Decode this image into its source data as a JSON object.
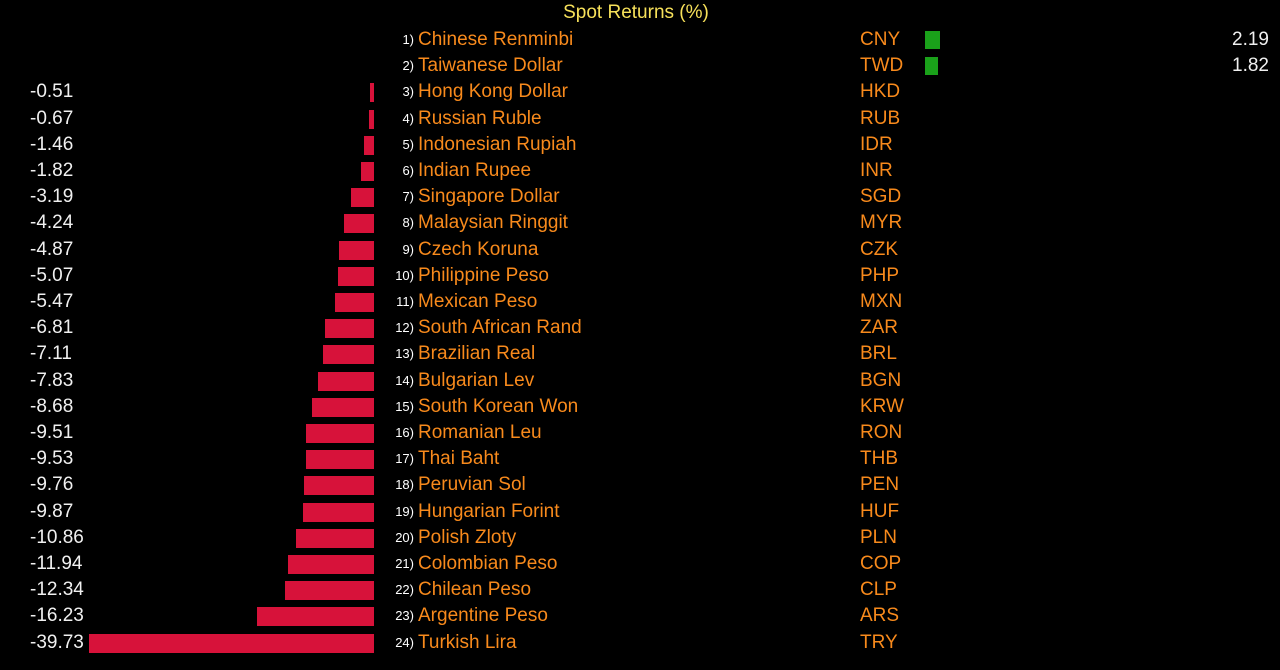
{
  "chart_data": {
    "type": "bar",
    "orientation": "horizontal",
    "title": "Spot Returns (%)",
    "legend": "none",
    "grid": false,
    "colors": {
      "negative": "#d7123a",
      "positive": "#1aa11a",
      "label": "#f88a1c",
      "title": "#f7e15a",
      "value": "#f0f0f0"
    },
    "rows": [
      {
        "rank": "1)",
        "name": "Chinese Renminbi",
        "code": "CNY",
        "value": 2.19,
        "label": "2.19"
      },
      {
        "rank": "2)",
        "name": "Taiwanese Dollar",
        "code": "TWD",
        "value": 1.82,
        "label": "1.82"
      },
      {
        "rank": "3)",
        "name": "Hong Kong Dollar",
        "code": "HKD",
        "value": -0.51,
        "label": "-0.51"
      },
      {
        "rank": "4)",
        "name": "Russian Ruble",
        "code": "RUB",
        "value": -0.67,
        "label": "-0.67"
      },
      {
        "rank": "5)",
        "name": "Indonesian Rupiah",
        "code": "IDR",
        "value": -1.46,
        "label": "-1.46"
      },
      {
        "rank": "6)",
        "name": "Indian Rupee",
        "code": "INR",
        "value": -1.82,
        "label": "-1.82"
      },
      {
        "rank": "7)",
        "name": "Singapore Dollar",
        "code": "SGD",
        "value": -3.19,
        "label": "-3.19"
      },
      {
        "rank": "8)",
        "name": "Malaysian Ringgit",
        "code": "MYR",
        "value": -4.24,
        "label": "-4.24"
      },
      {
        "rank": "9)",
        "name": "Czech Koruna",
        "code": "CZK",
        "value": -4.87,
        "label": "-4.87"
      },
      {
        "rank": "10)",
        "name": "Philippine Peso",
        "code": "PHP",
        "value": -5.07,
        "label": "-5.07"
      },
      {
        "rank": "11)",
        "name": "Mexican Peso",
        "code": "MXN",
        "value": -5.47,
        "label": "-5.47"
      },
      {
        "rank": "12)",
        "name": "South African Rand",
        "code": "ZAR",
        "value": -6.81,
        "label": "-6.81"
      },
      {
        "rank": "13)",
        "name": "Brazilian Real",
        "code": "BRL",
        "value": -7.11,
        "label": "-7.11"
      },
      {
        "rank": "14)",
        "name": "Bulgarian Lev",
        "code": "BGN",
        "value": -7.83,
        "label": "-7.83"
      },
      {
        "rank": "15)",
        "name": "South Korean Won",
        "code": "KRW",
        "value": -8.68,
        "label": "-8.68"
      },
      {
        "rank": "16)",
        "name": "Romanian Leu",
        "code": "RON",
        "value": -9.51,
        "label": "-9.51"
      },
      {
        "rank": "17)",
        "name": "Thai Baht",
        "code": "THB",
        "value": -9.53,
        "label": "-9.53"
      },
      {
        "rank": "18)",
        "name": "Peruvian Sol",
        "code": "PEN",
        "value": -9.76,
        "label": "-9.76"
      },
      {
        "rank": "19)",
        "name": "Hungarian Forint",
        "code": "HUF",
        "value": -9.87,
        "label": "-9.87"
      },
      {
        "rank": "20)",
        "name": "Polish Zloty",
        "code": "PLN",
        "value": -10.86,
        "label": "-10.86"
      },
      {
        "rank": "21)",
        "name": "Colombian Peso",
        "code": "COP",
        "value": -11.94,
        "label": "-11.94"
      },
      {
        "rank": "22)",
        "name": "Chilean Peso",
        "code": "CLP",
        "value": -12.34,
        "label": "-12.34"
      },
      {
        "rank": "23)",
        "name": "Argentine Peso",
        "code": "ARS",
        "value": -16.23,
        "label": "-16.23"
      },
      {
        "rank": "24)",
        "name": "Turkish Lira",
        "code": "TRY",
        "value": -39.73,
        "label": "-39.73"
      }
    ]
  }
}
